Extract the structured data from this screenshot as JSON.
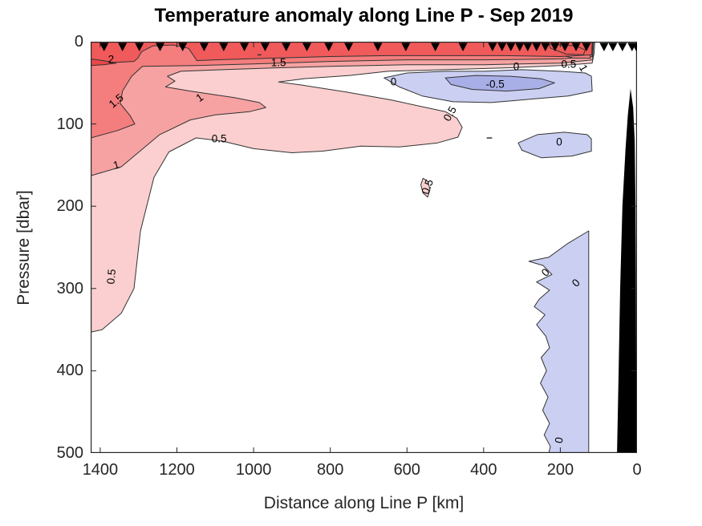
{
  "title": "Temperature anomaly along Line P - Sep 2019",
  "chart_data": {
    "type": "filled_contour",
    "title": "Temperature anomaly along Line P - Sep 2019",
    "xlabel": "Distance along Line P [km]",
    "ylabel": "Pressure [dbar]",
    "x_axis_reversed": true,
    "y_axis_inverted": true,
    "xlim": [
      1425,
      0
    ],
    "ylim": [
      0,
      500
    ],
    "x_ticks": [
      1400,
      1200,
      1000,
      800,
      600,
      400,
      200,
      0
    ],
    "y_ticks": [
      0,
      100,
      200,
      300,
      400,
      500
    ],
    "contour_levels": [
      -0.5,
      0,
      0.5,
      1,
      1.5,
      2
    ],
    "units": "degC anomaly",
    "colors": {
      "frame": "#262626",
      "contour_line": "#333333",
      "band_gt_2_5": "#e84848",
      "band_2_to_2_5": "#f05a5a",
      "band_1_5_to_2": "#f47d7d",
      "band_1_to_1_5": "#f7a2a2",
      "band_0_5_to_1": "#fbcfcf",
      "band_0_to_0_5": "#ffffff",
      "band_m0_5_to_0": "#cbd0f2",
      "band_m1_to_m0_5": "#a8afe7",
      "bathymetry": "#000000",
      "station_marker": "#000000"
    },
    "stations_km": [
      1390,
      1342,
      1298,
      1244,
      1185,
      1129,
      1078,
      1024,
      970,
      915,
      861,
      804,
      752,
      676,
      603,
      526,
      454,
      377,
      352,
      329,
      306,
      285,
      262,
      239,
      214,
      188,
      159,
      132,
      86,
      63,
      38,
      13,
      2
    ],
    "regions": [
      {
        "name": "anomaly-ge-0.5",
        "level": 0.5,
        "fill": "band_0_5_to_1",
        "points": [
          [
            1425,
            0
          ],
          [
            110,
            0
          ],
          [
            112,
            14
          ],
          [
            117,
            26
          ],
          [
            200,
            29
          ],
          [
            350,
            32
          ],
          [
            500,
            34
          ],
          [
            650,
            36
          ],
          [
            750,
            41
          ],
          [
            870,
            45
          ],
          [
            935,
            49
          ],
          [
            870,
            53
          ],
          [
            760,
            61
          ],
          [
            640,
            71
          ],
          [
            560,
            79
          ],
          [
            500,
            85
          ],
          [
            470,
            93
          ],
          [
            456,
            104
          ],
          [
            467,
            116
          ],
          [
            520,
            123
          ],
          [
            620,
            128
          ],
          [
            720,
            127
          ],
          [
            820,
            133
          ],
          [
            900,
            135
          ],
          [
            1000,
            130
          ],
          [
            1080,
            121
          ],
          [
            1150,
            117
          ],
          [
            1221,
            134
          ],
          [
            1260,
            165
          ],
          [
            1295,
            230
          ],
          [
            1312,
            300
          ],
          [
            1345,
            330
          ],
          [
            1395,
            350
          ],
          [
            1425,
            353
          ]
        ]
      },
      {
        "name": "anomaly-ge-0.5-blob",
        "level": 0.5,
        "fill": "band_0_5_to_1",
        "points": [
          [
            558,
            166
          ],
          [
            545,
            170
          ],
          [
            540,
            180
          ],
          [
            546,
            189
          ],
          [
            558,
            184
          ],
          [
            564,
            174
          ]
        ]
      },
      {
        "name": "anomaly-ge-1",
        "level": 1,
        "fill": "band_1_to_1_5",
        "points": [
          [
            1425,
            0
          ],
          [
            113,
            0
          ],
          [
            116,
            22
          ],
          [
            200,
            26
          ],
          [
            400,
            28
          ],
          [
            600,
            28
          ],
          [
            800,
            30
          ],
          [
            950,
            32
          ],
          [
            1080,
            34
          ],
          [
            1190,
            36
          ],
          [
            1225,
            42
          ],
          [
            1205,
            48
          ],
          [
            1230,
            55
          ],
          [
            1165,
            60
          ],
          [
            1050,
            68
          ],
          [
            985,
            74
          ],
          [
            968,
            80
          ],
          [
            1010,
            85
          ],
          [
            1100,
            89
          ],
          [
            1165,
            95
          ],
          [
            1245,
            113
          ],
          [
            1345,
            152
          ],
          [
            1425,
            163
          ]
        ]
      },
      {
        "name": "anomaly-ge-1.5",
        "level": 1.5,
        "fill": "band_1_5_to_2",
        "points": [
          [
            1425,
            0
          ],
          [
            115,
            0
          ],
          [
            117,
            18
          ],
          [
            200,
            21
          ],
          [
            400,
            22
          ],
          [
            600,
            22
          ],
          [
            800,
            24
          ],
          [
            1000,
            27
          ],
          [
            1150,
            29
          ],
          [
            1290,
            30
          ],
          [
            1318,
            42
          ],
          [
            1342,
            60
          ],
          [
            1348,
            75
          ],
          [
            1322,
            90
          ],
          [
            1310,
            100
          ],
          [
            1355,
            108
          ],
          [
            1425,
            117
          ]
        ]
      },
      {
        "name": "anomaly-ge-1.5-coastal",
        "level": 1.5,
        "fill": "band_1_5_to_2",
        "points": [
          [
            300,
            2
          ],
          [
            180,
            3
          ],
          [
            128,
            6
          ],
          [
            121,
            20
          ],
          [
            165,
            20
          ],
          [
            230,
            13
          ],
          [
            280,
            7
          ]
        ]
      },
      {
        "name": "anomaly-ge-2",
        "level": 2,
        "fill": "band_2_to_2_5",
        "points": [
          [
            1425,
            0
          ],
          [
            117,
            0
          ],
          [
            118,
            16
          ],
          [
            200,
            18
          ],
          [
            350,
            17
          ],
          [
            500,
            17
          ],
          [
            650,
            17
          ],
          [
            800,
            18
          ],
          [
            950,
            20
          ],
          [
            1100,
            22
          ],
          [
            1148,
            23
          ],
          [
            1158,
            16
          ],
          [
            1170,
            8
          ],
          [
            1210,
            4
          ],
          [
            1262,
            5
          ],
          [
            1292,
            12
          ],
          [
            1302,
            20
          ],
          [
            1312,
            24
          ],
          [
            1360,
            25
          ],
          [
            1425,
            26
          ]
        ]
      },
      {
        "name": "anomaly-ge-2-coastal",
        "level": 2,
        "fill": "band_2_to_2_5",
        "points": [
          [
            230,
            3
          ],
          [
            160,
            5
          ],
          [
            135,
            10
          ],
          [
            140,
            16
          ],
          [
            185,
            15
          ],
          [
            225,
            8
          ]
        ]
      },
      {
        "name": "anomaly-ge-2.5-sliver",
        "level": 2.5,
        "fill": "band_gt_2_5",
        "points": [
          [
            1425,
            21
          ],
          [
            1392,
            23
          ],
          [
            1358,
            26
          ],
          [
            1392,
            28
          ],
          [
            1425,
            29
          ]
        ]
      },
      {
        "name": "anomaly-le-0-upper",
        "level": 0,
        "fill": "band_m0_5_to_0",
        "points": [
          [
            660,
            44
          ],
          [
            600,
            38
          ],
          [
            500,
            36
          ],
          [
            400,
            36
          ],
          [
            300,
            34
          ],
          [
            200,
            36
          ],
          [
            135,
            38
          ],
          [
            119,
            42
          ],
          [
            117,
            60
          ],
          [
            180,
            66
          ],
          [
            280,
            70
          ],
          [
            380,
            74
          ],
          [
            480,
            73
          ],
          [
            560,
            66
          ],
          [
            620,
            55
          ]
        ]
      },
      {
        "name": "anomaly-le-m0.5",
        "level": -0.5,
        "fill": "band_m1_to_m0_5",
        "points": [
          [
            500,
            44
          ],
          [
            420,
            41
          ],
          [
            330,
            42
          ],
          [
            250,
            45
          ],
          [
            215,
            50
          ],
          [
            255,
            57
          ],
          [
            340,
            60
          ],
          [
            430,
            58
          ],
          [
            485,
            52
          ]
        ]
      },
      {
        "name": "anomaly-le-0-mid",
        "level": 0,
        "fill": "band_m0_5_to_0",
        "points": [
          [
            310,
            123
          ],
          [
            260,
            113
          ],
          [
            190,
            110
          ],
          [
            130,
            113
          ],
          [
            119,
            118
          ],
          [
            119,
            133
          ],
          [
            170,
            139
          ],
          [
            250,
            141
          ],
          [
            300,
            132
          ]
        ]
      },
      {
        "name": "anomaly-le-0-deep",
        "level": 0,
        "fill": "band_m0_5_to_0",
        "points": [
          [
            126,
            230
          ],
          [
            180,
            245
          ],
          [
            230,
            262
          ],
          [
            282,
            267
          ],
          [
            245,
            272
          ],
          [
            222,
            283
          ],
          [
            262,
            292
          ],
          [
            228,
            302
          ],
          [
            255,
            313
          ],
          [
            268,
            322
          ],
          [
            240,
            332
          ],
          [
            262,
            344
          ],
          [
            238,
            358
          ],
          [
            228,
            372
          ],
          [
            250,
            384
          ],
          [
            236,
            400
          ],
          [
            252,
            415
          ],
          [
            232,
            432
          ],
          [
            246,
            448
          ],
          [
            228,
            464
          ],
          [
            242,
            478
          ],
          [
            226,
            492
          ],
          [
            230,
            500
          ],
          [
            126,
            500
          ]
        ]
      }
    ],
    "bathymetry_points": [
      [
        17,
        57
      ],
      [
        24,
        90
      ],
      [
        30,
        130
      ],
      [
        38,
        200
      ],
      [
        44,
        300
      ],
      [
        48,
        400
      ],
      [
        52,
        500
      ],
      [
        2,
        500
      ],
      [
        2,
        400
      ],
      [
        3,
        300
      ],
      [
        4,
        200
      ],
      [
        6,
        120
      ],
      [
        10,
        80
      ]
    ],
    "contour_line_fragments": [
      [
        392,
        117,
        378,
        117
      ],
      [
        990,
        16,
        980,
        16
      ]
    ],
    "contour_labels": [
      {
        "text": "2",
        "km": 1372,
        "dbar": 21,
        "rot": 0
      },
      {
        "text": "1.5",
        "km": 935,
        "dbar": 25,
        "rot": 0
      },
      {
        "text": "0.5",
        "km": 178,
        "dbar": 27,
        "rot": 0
      },
      {
        "text": "1",
        "km": 140,
        "dbar": 32,
        "rot": 60
      },
      {
        "text": "1.5",
        "km": 1358,
        "dbar": 72,
        "rot": -40
      },
      {
        "text": "1",
        "km": 1140,
        "dbar": 68,
        "rot": -35
      },
      {
        "text": "1",
        "km": 1357,
        "dbar": 150,
        "rot": -15
      },
      {
        "text": "0.5",
        "km": 1090,
        "dbar": 118,
        "rot": 0
      },
      {
        "text": "0",
        "km": 635,
        "dbar": 49,
        "rot": 0
      },
      {
        "text": "0",
        "km": 315,
        "dbar": 30,
        "rot": 0
      },
      {
        "text": "-0.5",
        "km": 370,
        "dbar": 52,
        "rot": 0
      },
      {
        "text": "0.5",
        "km": 487,
        "dbar": 88,
        "rot": -60
      },
      {
        "text": "0.5",
        "km": 547,
        "dbar": 176,
        "rot": -70
      },
      {
        "text": "0",
        "km": 203,
        "dbar": 122,
        "rot": 0
      },
      {
        "text": "0.5",
        "km": 1370,
        "dbar": 286,
        "rot": -85
      },
      {
        "text": "0",
        "km": 238,
        "dbar": 281,
        "rot": -45
      },
      {
        "text": "0",
        "km": 160,
        "dbar": 293,
        "rot": -45
      },
      {
        "text": "0",
        "km": 204,
        "dbar": 484,
        "rot": -80
      }
    ]
  }
}
